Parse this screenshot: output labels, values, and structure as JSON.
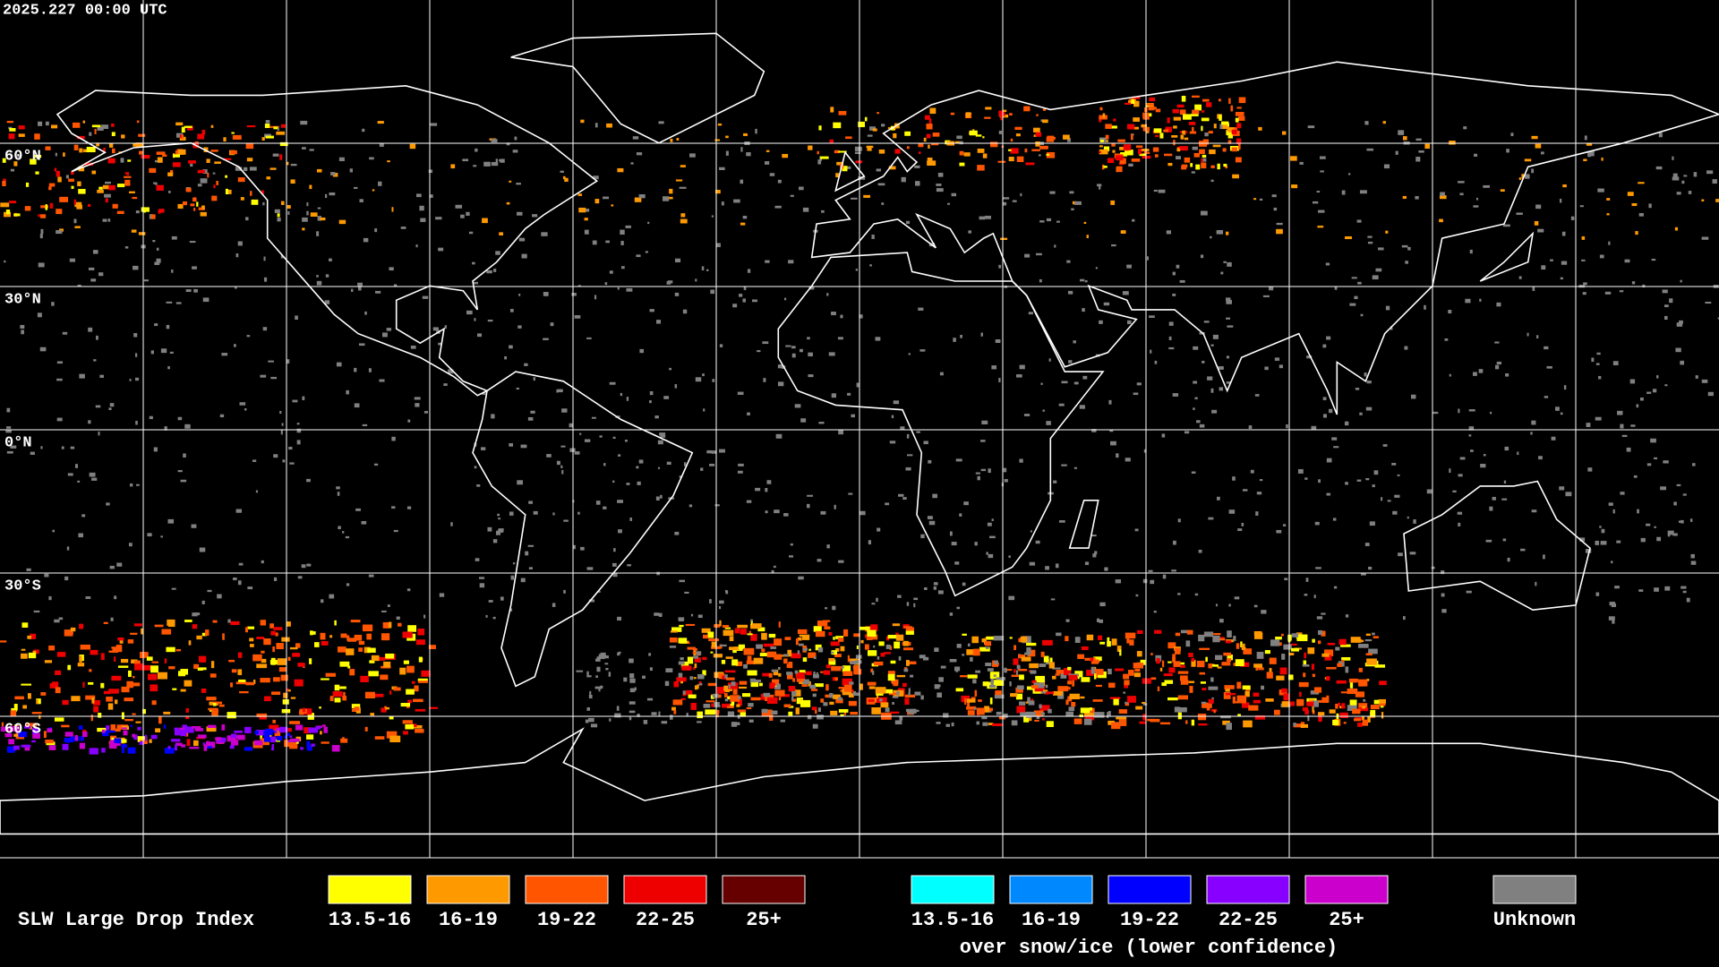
{
  "header": {
    "timestamp": "2025.227 00:00 UTC"
  },
  "map": {
    "latitude_labels": [
      "60°N",
      "30°N",
      "0°N",
      "30°S",
      "60°S"
    ]
  },
  "legend": {
    "title": "SLW Large Drop Index",
    "standard": [
      {
        "label": "13.5-16",
        "color": "#ffff00"
      },
      {
        "label": "16-19",
        "color": "#ff9900"
      },
      {
        "label": "19-22",
        "color": "#ff5500"
      },
      {
        "label": "22-25",
        "color": "#ee0000"
      },
      {
        "label": "25+",
        "color": "#660000"
      }
    ],
    "snow_ice": [
      {
        "label": "13.5-16",
        "color": "#00ffff"
      },
      {
        "label": "16-19",
        "color": "#0088ff"
      },
      {
        "label": "19-22",
        "color": "#0000ff"
      },
      {
        "label": "22-25",
        "color": "#8800ff"
      },
      {
        "label": "25+",
        "color": "#cc00cc"
      }
    ],
    "snow_ice_caption": "over snow/ice (lower confidence)",
    "unknown": {
      "label": "Unknown",
      "color": "#808080"
    }
  }
}
